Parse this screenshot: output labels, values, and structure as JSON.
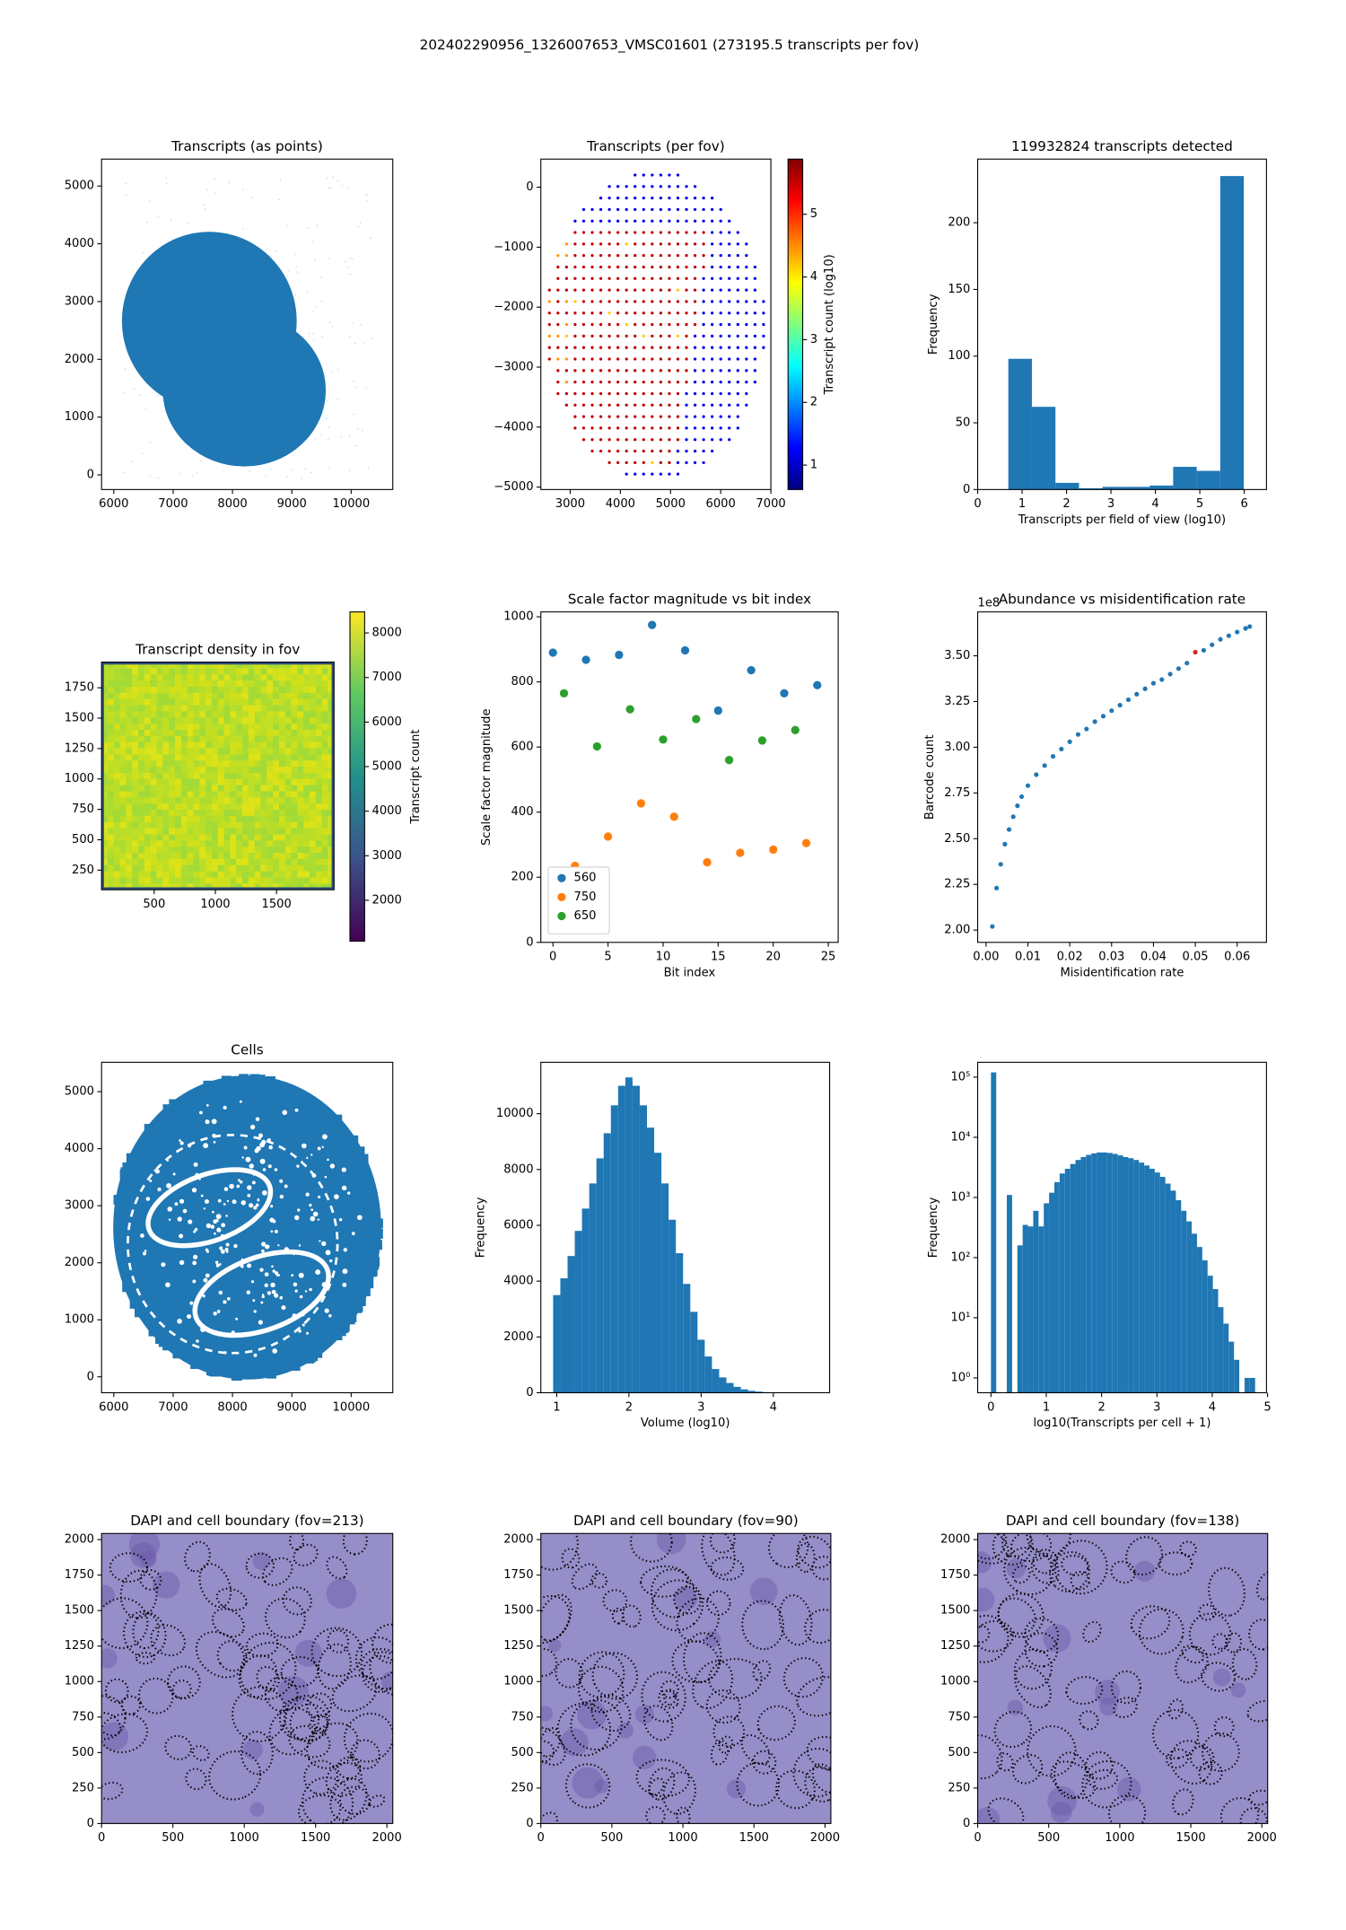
{
  "figure_title": "202402290956_1326007653_VMSC01601 (273195.5 transcripts per fov)",
  "chart_data": [
    {
      "type": "point-map",
      "title": "Transcripts (as points)",
      "color": "#1f77b4",
      "xlim": [
        5794,
        10701
      ],
      "ylim": [
        -254,
        5466
      ],
      "xticks": [
        6000,
        7000,
        8000,
        9000,
        10000
      ],
      "yticks": [
        0,
        1000,
        2000,
        3000,
        4000,
        5000
      ]
    },
    {
      "type": "fov-map",
      "title": "Transcripts (per fov)",
      "xlim": [
        2415,
        7000
      ],
      "ylim": [
        -5041,
        469
      ],
      "xticks": [
        3000,
        4000,
        5000,
        6000,
        7000
      ],
      "yticks": [
        {
          "value": -5000,
          "label": "−5000"
        },
        {
          "value": -4000,
          "label": "−4000"
        },
        {
          "value": -3000,
          "label": "−3000"
        },
        {
          "value": -2000,
          "label": "−2000"
        },
        {
          "value": -1000,
          "label": "−1000"
        },
        0
      ],
      "colorbar": {
        "label": "Transcript count (log10)",
        "colormap": "jet",
        "lim": [
          0.61,
          5.88
        ],
        "ticks": [
          1,
          2,
          3,
          4,
          5
        ]
      }
    },
    {
      "type": "histogram",
      "title": "119932824 transcripts detected",
      "xlabel": "Transcripts per field of view (log10)",
      "ylabel": "Frequency",
      "color": "#1f77b4",
      "bins": [
        0.69,
        1.22,
        1.75,
        2.28,
        2.81,
        3.34,
        3.87,
        4.4,
        4.93,
        5.46,
        5.99
      ],
      "values": [
        98,
        62,
        5,
        1,
        2,
        2,
        3,
        17,
        14,
        235
      ],
      "xlim": [
        0,
        6.5
      ],
      "ylim": [
        0,
        247.7
      ],
      "xticks": [
        0,
        1,
        2,
        3,
        4,
        5,
        6
      ],
      "yticks": [
        0,
        50,
        100,
        150,
        200
      ]
    },
    {
      "type": "heatmap",
      "title": "Transcript density in fov",
      "xlim": [
        70,
        1970
      ],
      "ylim": [
        89,
        1961
      ],
      "xticks": [
        500,
        1000,
        1500
      ],
      "yticks": [
        250,
        500,
        750,
        1000,
        1250,
        1500,
        1750
      ],
      "colorbar": {
        "label": "Transcript count",
        "colormap": "viridis",
        "lim": [
          1083,
          8472
        ],
        "ticks": [
          2000,
          3000,
          4000,
          5000,
          6000,
          7000,
          8000
        ]
      }
    },
    {
      "type": "scatter",
      "title": "Scale factor magnitude vs bit index",
      "xlabel": "Bit index",
      "ylabel": "Scale factor magnitude",
      "legend": "lower left",
      "xlim": [
        -1.1,
        25.9
      ],
      "ylim": [
        0,
        1015
      ],
      "xticks": [
        0,
        5,
        10,
        15,
        20,
        25
      ],
      "yticks": [
        0,
        200,
        400,
        600,
        800,
        1000
      ],
      "series": [
        {
          "name": "560",
          "color": "#1f77b4",
          "x": [
            0,
            3,
            6,
            9,
            12,
            15,
            18,
            21,
            24
          ],
          "values": [
            890,
            868,
            883,
            975,
            897,
            712,
            836,
            765,
            790
          ]
        },
        {
          "name": "750",
          "color": "#ff7f0e",
          "x": [
            2,
            5,
            8,
            11,
            14,
            17,
            20,
            23
          ],
          "values": [
            235,
            325,
            427,
            386,
            246,
            275,
            285,
            305
          ]
        },
        {
          "name": "650",
          "color": "#2ca02c",
          "x": [
            1,
            4,
            7,
            10,
            13,
            16,
            19,
            22
          ],
          "values": [
            765,
            602,
            716,
            623,
            686,
            560,
            620,
            652
          ]
        }
      ]
    },
    {
      "type": "scatter",
      "title": "Abundance vs misidentification rate",
      "xlabel": "Misidentification rate",
      "ylabel": "Barcode count",
      "y_offset_label": "1e8",
      "xlim": [
        -0.002,
        0.067
      ],
      "ylim": [
        1.933,
        3.74
      ],
      "xticks": [
        {
          "value": 0,
          "label": "0.00"
        },
        0.01,
        0.02,
        0.03,
        0.04,
        0.05,
        0.06
      ],
      "yticks": [
        {
          "value": 2,
          "label": "2.00"
        },
        2.25,
        {
          "value": 2.5,
          "label": "2.50"
        },
        2.75,
        {
          "value": 3,
          "label": "3.00"
        },
        3.25,
        {
          "value": 3.5,
          "label": "3.50"
        }
      ],
      "series": [
        {
          "color": "#1f77b4",
          "x": [
            0.0015,
            0.0025,
            0.0035,
            0.0045,
            0.0055,
            0.0065,
            0.0075,
            0.0085,
            0.01,
            0.012,
            0.014,
            0.016,
            0.018,
            0.02,
            0.022,
            0.024,
            0.026,
            0.028,
            0.03,
            0.032,
            0.034,
            0.036,
            0.038,
            0.04,
            0.042,
            0.044,
            0.046,
            0.048,
            0.052,
            0.054,
            0.056,
            0.058,
            0.06,
            0.062,
            0.063
          ],
          "values": [
            2.02,
            2.23,
            2.36,
            2.47,
            2.55,
            2.62,
            2.68,
            2.73,
            2.79,
            2.85,
            2.9,
            2.95,
            2.99,
            3.03,
            3.07,
            3.1,
            3.14,
            3.17,
            3.2,
            3.23,
            3.26,
            3.29,
            3.32,
            3.35,
            3.37,
            3.4,
            3.43,
            3.46,
            3.53,
            3.56,
            3.59,
            3.61,
            3.63,
            3.65,
            3.66
          ]
        },
        {
          "color": "#d62728",
          "x": [
            0.05
          ],
          "values": [
            3.52
          ]
        }
      ]
    },
    {
      "type": "point-map",
      "title": "Cells",
      "color": "#1f77b4",
      "xlim": [
        5794,
        10701
      ],
      "ylim": [
        -279,
        5515
      ],
      "xticks": [
        6000,
        7000,
        8000,
        9000,
        10000
      ],
      "yticks": [
        0,
        1000,
        2000,
        3000,
        4000,
        5000
      ]
    },
    {
      "type": "histogram",
      "xlabel": "Volume (log10)",
      "ylabel": "Frequency",
      "color": "#1f77b4",
      "bins": [
        0.95,
        1.05,
        1.15,
        1.25,
        1.35,
        1.45,
        1.55,
        1.65,
        1.75,
        1.85,
        1.95,
        2.05,
        2.15,
        2.25,
        2.35,
        2.45,
        2.55,
        2.65,
        2.75,
        2.85,
        2.95,
        3.05,
        3.15,
        3.25,
        3.35,
        3.45,
        3.55,
        3.65,
        3.75,
        3.85,
        3.95,
        4.05,
        4.15,
        4.25,
        4.35,
        4.45,
        4.55,
        4.65
      ],
      "values": [
        3500,
        4100,
        4900,
        5800,
        6600,
        7500,
        8400,
        9300,
        10300,
        11000,
        11300,
        11000,
        10300,
        9500,
        8600,
        7500,
        6200,
        5000,
        3900,
        2900,
        1900,
        1300,
        850,
        550,
        350,
        210,
        120,
        70,
        40,
        20,
        10,
        5,
        3,
        2,
        1,
        1,
        1
      ],
      "xlim": [
        0.78,
        4.78
      ],
      "ylim": [
        0,
        11842
      ],
      "xticks": [
        1,
        2,
        3,
        4
      ],
      "yticks": [
        0,
        2000,
        4000,
        6000,
        8000,
        10000
      ]
    },
    {
      "type": "histogram",
      "xlabel": "log10(Transcripts per cell + 1)",
      "ylabel": "Frequency",
      "color": "#1f77b4",
      "log_y": true,
      "bins": [
        0,
        0.0955,
        0.191,
        0.2865,
        0.382,
        0.4775,
        0.573,
        0.6685,
        0.764,
        0.8595,
        0.955,
        1.0505,
        1.146,
        1.2415,
        1.337,
        1.4325,
        1.528,
        1.6235,
        1.719,
        1.8145,
        1.91,
        2.0055,
        2.101,
        2.1965,
        2.292,
        2.3875,
        2.483,
        2.5785,
        2.674,
        2.7695,
        2.865,
        2.9605,
        3.056,
        3.1515,
        3.247,
        3.3425,
        3.438,
        3.5335,
        3.629,
        3.7245,
        3.82,
        3.9155,
        4.011,
        4.1065,
        4.202,
        4.2975,
        4.393,
        4.4885,
        4.584,
        4.6795,
        4.775
      ],
      "values": [
        120000,
        0,
        0,
        1100,
        0,
        160,
        350,
        330,
        600,
        330,
        800,
        1200,
        1800,
        2500,
        3000,
        3600,
        4200,
        4700,
        5100,
        5400,
        5600,
        5600,
        5500,
        5300,
        5000,
        4700,
        4500,
        4200,
        3800,
        3400,
        3000,
        2600,
        2200,
        1700,
        1300,
        900,
        600,
        400,
        250,
        150,
        90,
        50,
        30,
        15,
        8,
        4,
        2,
        0,
        1,
        1
      ],
      "xlim": [
        -0.24,
        4.98
      ],
      "ylim": [
        0.567,
        176600
      ],
      "xticks": [
        0,
        1,
        2,
        3,
        4,
        5
      ],
      "yticks": [
        {
          "value": 1,
          "label": "10⁰"
        },
        {
          "value": 10,
          "label": "10¹"
        },
        {
          "value": 100,
          "label": "10²"
        },
        {
          "value": 1000,
          "label": "10³"
        },
        {
          "value": 10000,
          "label": "10⁴"
        },
        {
          "value": 100000,
          "label": "10⁵"
        }
      ]
    },
    {
      "type": "microscopy",
      "title": "DAPI and cell boundary (fov=213)",
      "xlim": [
        0,
        2041
      ],
      "ylim": [
        0,
        2043
      ],
      "xticks": [
        0,
        500,
        1000,
        1500,
        2000
      ],
      "yticks": [
        0,
        250,
        500,
        750,
        1000,
        1250,
        1500,
        1750,
        2000
      ]
    },
    {
      "type": "microscopy",
      "title": "DAPI and cell boundary (fov=90)",
      "xlim": [
        0,
        2041
      ],
      "ylim": [
        0,
        2043
      ],
      "xticks": [
        0,
        500,
        1000,
        1500,
        2000
      ],
      "yticks": [
        0,
        250,
        500,
        750,
        1000,
        1250,
        1500,
        1750,
        2000
      ]
    },
    {
      "type": "microscopy",
      "title": "DAPI and cell boundary (fov=138)",
      "xlim": [
        0,
        2041
      ],
      "ylim": [
        0,
        2043
      ],
      "xticks": [
        0,
        500,
        1000,
        1500,
        2000
      ],
      "yticks": [
        0,
        250,
        500,
        750,
        1000,
        1250,
        1500,
        1750,
        2000
      ]
    }
  ]
}
